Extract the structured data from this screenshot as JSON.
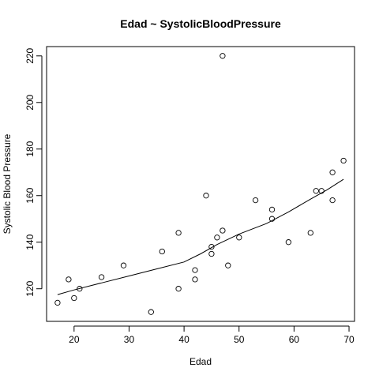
{
  "chart_data": {
    "type": "scatter",
    "title": "Edad ~ SystolicBloodPressure",
    "xlabel": "Edad",
    "ylabel": "Systolic Blood Pressure",
    "xlim": [
      15,
      71
    ],
    "ylim": [
      106,
      224
    ],
    "xticks": [
      20,
      30,
      40,
      50,
      60,
      70
    ],
    "yticks": [
      120,
      140,
      160,
      180,
      200,
      220
    ],
    "grid": false,
    "points": [
      {
        "x": 17,
        "y": 114
      },
      {
        "x": 19,
        "y": 124
      },
      {
        "x": 20,
        "y": 116
      },
      {
        "x": 21,
        "y": 120
      },
      {
        "x": 25,
        "y": 125
      },
      {
        "x": 29,
        "y": 130
      },
      {
        "x": 34,
        "y": 110
      },
      {
        "x": 36,
        "y": 136
      },
      {
        "x": 39,
        "y": 144
      },
      {
        "x": 39,
        "y": 120
      },
      {
        "x": 42,
        "y": 128
      },
      {
        "x": 42,
        "y": 124
      },
      {
        "x": 44,
        "y": 160
      },
      {
        "x": 45,
        "y": 138
      },
      {
        "x": 45,
        "y": 135
      },
      {
        "x": 46,
        "y": 142
      },
      {
        "x": 47,
        "y": 220
      },
      {
        "x": 47,
        "y": 145
      },
      {
        "x": 48,
        "y": 130
      },
      {
        "x": 50,
        "y": 142
      },
      {
        "x": 53,
        "y": 158
      },
      {
        "x": 56,
        "y": 154
      },
      {
        "x": 56,
        "y": 150
      },
      {
        "x": 59,
        "y": 140
      },
      {
        "x": 63,
        "y": 144
      },
      {
        "x": 64,
        "y": 162
      },
      {
        "x": 65,
        "y": 162
      },
      {
        "x": 67,
        "y": 170
      },
      {
        "x": 67,
        "y": 158
      },
      {
        "x": 69,
        "y": 175
      }
    ],
    "smooth_line": [
      {
        "x": 17,
        "y": 117.5
      },
      {
        "x": 20,
        "y": 119.5
      },
      {
        "x": 25,
        "y": 122.5
      },
      {
        "x": 30,
        "y": 125.5
      },
      {
        "x": 35,
        "y": 128.5
      },
      {
        "x": 40,
        "y": 131.5
      },
      {
        "x": 43,
        "y": 135
      },
      {
        "x": 46,
        "y": 139
      },
      {
        "x": 50,
        "y": 143.5
      },
      {
        "x": 55,
        "y": 148
      },
      {
        "x": 59,
        "y": 153
      },
      {
        "x": 63,
        "y": 158.5
      },
      {
        "x": 66,
        "y": 162.5
      },
      {
        "x": 69,
        "y": 167
      }
    ]
  }
}
